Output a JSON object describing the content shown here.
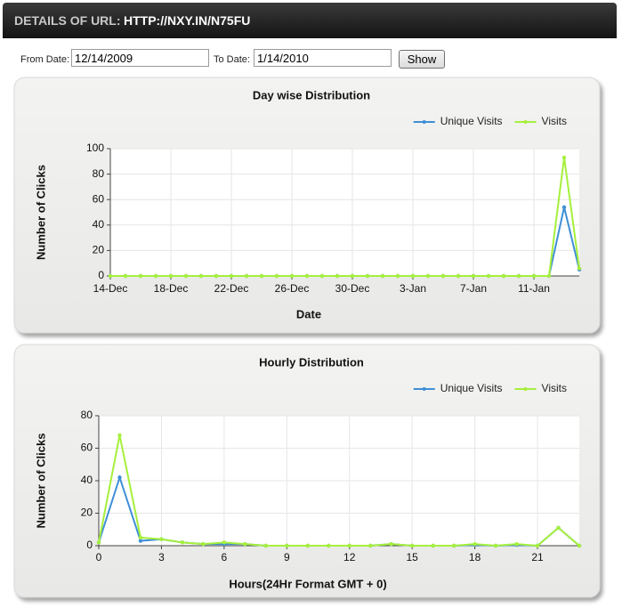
{
  "header": {
    "label": "DETAILS OF URL:",
    "url": "HTTP://NXY.IN/N75FU"
  },
  "form": {
    "from_label": "From Date:",
    "from_value": "12/14/2009",
    "to_label": "To Date:",
    "to_value": "1/14/2010",
    "button": "Show"
  },
  "chart_data": [
    {
      "type": "line",
      "title": "Day wise Distribution",
      "x_label": "Date",
      "y_label": "Number of Clicks",
      "categories": [
        "14-Dec",
        null,
        null,
        null,
        "18-Dec",
        null,
        null,
        null,
        "22-Dec",
        null,
        null,
        null,
        "26-Dec",
        null,
        null,
        null,
        "30-Dec",
        null,
        null,
        null,
        "3-Jan",
        null,
        null,
        null,
        "7-Jan",
        null,
        null,
        null,
        "11-Jan",
        null,
        null,
        null
      ],
      "series": [
        {
          "name": "Unique Visits",
          "color": "#3f8fd6",
          "values": [
            0,
            0,
            0,
            0,
            0,
            0,
            0,
            0,
            0,
            0,
            0,
            0,
            0,
            0,
            0,
            0,
            0,
            0,
            0,
            0,
            0,
            0,
            0,
            0,
            0,
            0,
            0,
            0,
            0,
            0,
            54,
            5
          ]
        },
        {
          "name": "Visits",
          "color": "#a6f03c",
          "values": [
            0,
            0,
            0,
            0,
            0,
            0,
            0,
            0,
            0,
            0,
            0,
            0,
            0,
            0,
            0,
            0,
            0,
            0,
            0,
            0,
            0,
            0,
            0,
            0,
            0,
            0,
            0,
            0,
            0,
            0,
            93,
            6
          ]
        }
      ],
      "ylim": [
        0,
        100
      ],
      "yticks": [
        0,
        20,
        40,
        60,
        80,
        100
      ],
      "grid": true,
      "legend": "top-right"
    },
    {
      "type": "line",
      "title": "Hourly Distribution",
      "x_label": "Hours(24Hr Format GMT + 0)",
      "y_label": "Number of Clicks",
      "x": [
        0,
        1,
        2,
        3,
        4,
        5,
        6,
        7,
        8,
        9,
        10,
        11,
        12,
        13,
        14,
        15,
        16,
        17,
        18,
        19,
        20,
        21,
        22,
        23
      ],
      "series": [
        {
          "name": "Unique Visits",
          "color": "#3f8fd6",
          "values": [
            2,
            42,
            3,
            4,
            2,
            1,
            1,
            1,
            0,
            0,
            0,
            0,
            0,
            0,
            1,
            0,
            0,
            0,
            0.5,
            0,
            0.5,
            0,
            11,
            0
          ]
        },
        {
          "name": "Visits",
          "color": "#a6f03c",
          "values": [
            2,
            68,
            5,
            4,
            2,
            1,
            2,
            1,
            0,
            0,
            0,
            0,
            0,
            0,
            1,
            0,
            0,
            0,
            1,
            0,
            1,
            0,
            11,
            0
          ]
        }
      ],
      "xlim": [
        0,
        23
      ],
      "xticks": [
        0,
        3,
        6,
        9,
        12,
        15,
        18,
        21
      ],
      "ylim": [
        0,
        80
      ],
      "yticks": [
        0,
        20,
        40,
        60,
        80
      ],
      "grid": true,
      "legend": "top-right"
    }
  ]
}
